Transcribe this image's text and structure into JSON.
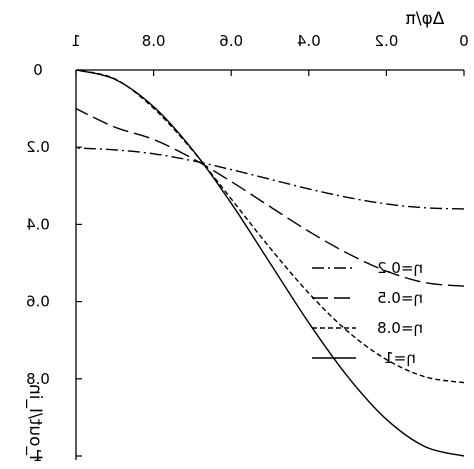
{
  "chart_data": {
    "type": "line",
    "mirrored": true,
    "xlabel": "Δφ/π",
    "ylabel": "I_out/I_in",
    "xlim": [
      0,
      1
    ],
    "ylim": [
      0,
      1
    ],
    "x_ticks": [
      "0",
      "0.2",
      "0.4",
      "0.6",
      "0.8",
      "1"
    ],
    "y_ticks": [
      "0",
      "0.2",
      "0.4",
      "0.6",
      "0.8",
      "1"
    ],
    "grid": false,
    "legend_position": "lower-right",
    "colors": {
      "line": "#000000",
      "axes": "#000000",
      "background": "#ffffff"
    },
    "series": [
      {
        "name": "η=0.2",
        "dash": "dashdot",
        "x": [
          0,
          0.1,
          0.2,
          0.3,
          0.4,
          0.5,
          0.6,
          0.7,
          0.8,
          0.9,
          1.0
        ],
        "values": [
          0.36,
          0.357,
          0.347,
          0.33,
          0.308,
          0.283,
          0.258,
          0.235,
          0.217,
          0.207,
          0.202
        ]
      },
      {
        "name": "η=0.5",
        "dash": "longdash",
        "x": [
          0,
          0.1,
          0.2,
          0.3,
          0.4,
          0.5,
          0.6,
          0.7,
          0.8,
          0.9,
          1.0
        ],
        "values": [
          0.56,
          0.551,
          0.521,
          0.475,
          0.418,
          0.354,
          0.289,
          0.229,
          0.18,
          0.148,
          0.1
        ]
      },
      {
        "name": "η=0.8",
        "dash": "dash",
        "x": [
          0,
          0.1,
          0.2,
          0.3,
          0.4,
          0.5,
          0.6,
          0.7,
          0.8,
          0.9,
          1.0
        ],
        "values": [
          0.81,
          0.795,
          0.75,
          0.677,
          0.578,
          0.461,
          0.334,
          0.208,
          0.099,
          0.023,
          0.0
        ]
      },
      {
        "name": "η=1",
        "dash": "solid",
        "x": [
          0,
          0.1,
          0.2,
          0.3,
          0.4,
          0.5,
          0.6,
          0.7,
          0.8,
          0.9,
          1.0
        ],
        "values": [
          1.0,
          0.976,
          0.905,
          0.794,
          0.655,
          0.5,
          0.345,
          0.206,
          0.095,
          0.024,
          0.0
        ]
      }
    ]
  }
}
